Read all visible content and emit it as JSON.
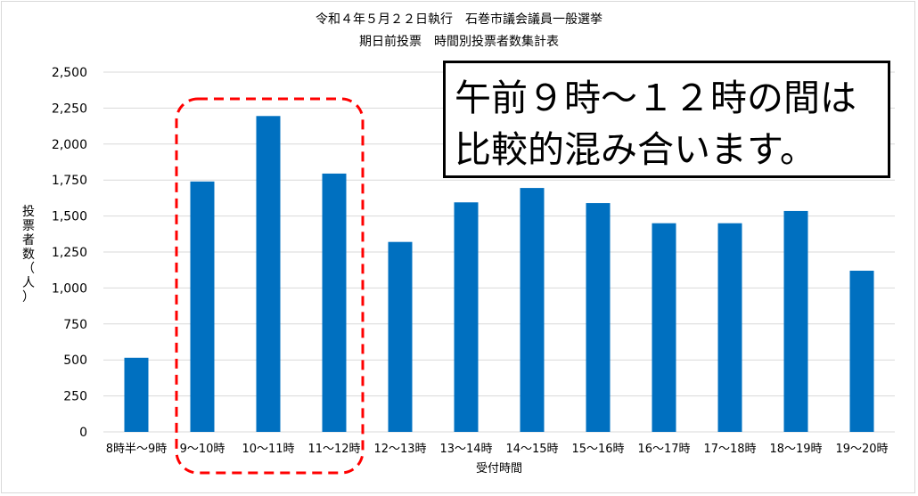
{
  "chart_data": {
    "type": "bar",
    "title": "令和４年５月２２日執行　石巻市議会議員一般選挙",
    "subtitle": "期日前投票　時間別投票者数集計表",
    "xlabel": "受付時間",
    "ylabel": "投票者数（人）",
    "ylim": [
      0,
      2500
    ],
    "yticks": [
      0,
      250,
      500,
      750,
      1000,
      1250,
      1500,
      1750,
      2000,
      2250,
      2500
    ],
    "ytick_labels": [
      "0",
      "250",
      "500",
      "750",
      "1,000",
      "1,250",
      "1,500",
      "1,750",
      "2,000",
      "2,250",
      "2,500"
    ],
    "grid": true,
    "bar_color": "#0070c0",
    "categories": [
      "8時半～9時",
      "9～10時",
      "10～11時",
      "11～12時",
      "12～13時",
      "13～14時",
      "14～15時",
      "15～16時",
      "16～17時",
      "17～18時",
      "18～19時",
      "19～20時"
    ],
    "values": [
      515,
      1740,
      2195,
      1795,
      1320,
      1595,
      1695,
      1590,
      1450,
      1450,
      1535,
      1120
    ],
    "highlight": {
      "categories": [
        "9～10時",
        "10～11時",
        "11～12時"
      ],
      "color": "#ff0000",
      "style": "dashed"
    },
    "annotation": {
      "lines": [
        "午前９時～１２時の間は",
        "比較的混み合います。"
      ]
    }
  }
}
